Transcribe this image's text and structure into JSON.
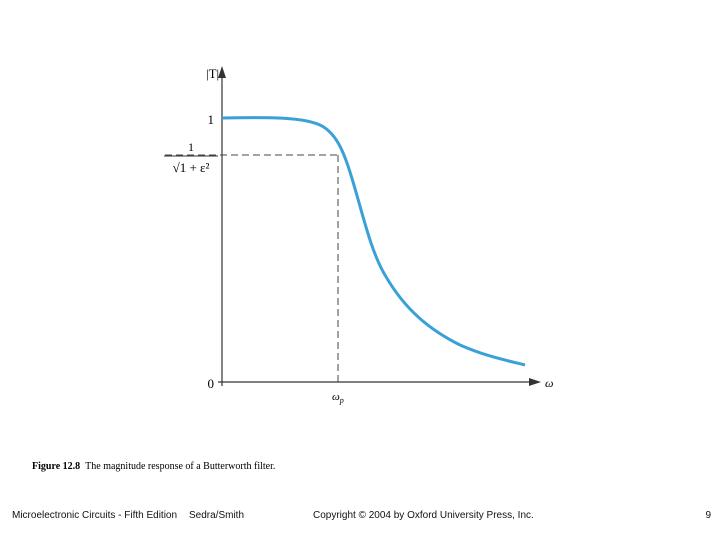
{
  "figure": {
    "y_axis_label": "|T|",
    "x_axis_label": "ω",
    "y_one": "1",
    "y_zero": "0",
    "edge_numerator": "1",
    "edge_denominator": "√1 + ε²",
    "edge_frequency": {
      "symbol": "ω",
      "subscript": "p"
    }
  },
  "caption": {
    "number": "Figure 12.8",
    "text": "The magnitude response of a Butterworth filter."
  },
  "footer": {
    "book": "Microelectronic Circuits - Fifth Edition",
    "authors": "Sedra/Smith",
    "copyright": "Copyright © 2004 by Oxford University Press, Inc.",
    "page": "9"
  }
}
